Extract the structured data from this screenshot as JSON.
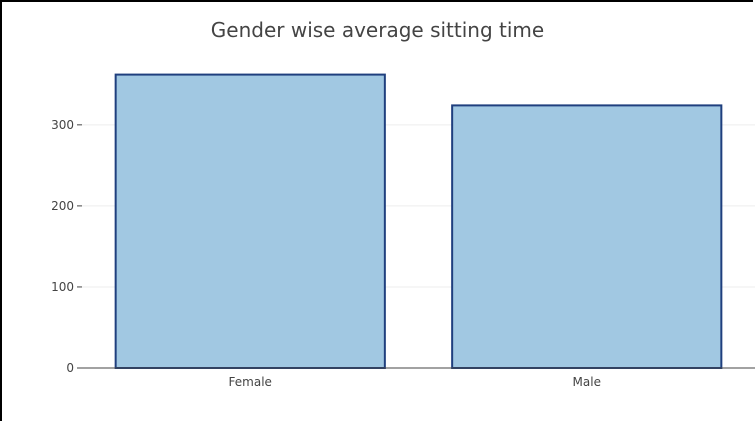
{
  "chart_data": {
    "type": "bar",
    "title": "Gender wise average sitting time",
    "categories": [
      "Female",
      "Male"
    ],
    "values": [
      362,
      324
    ],
    "xlabel": "",
    "ylabel": "",
    "ylim": [
      0,
      380
    ],
    "y_ticks": [
      0,
      100,
      200,
      300
    ],
    "y_tick_labels": [
      "0",
      "100",
      "200",
      "300"
    ],
    "grid": true,
    "legend": "none",
    "colors": {
      "bar_fill": "#a1c8e2",
      "bar_stroke": "#1f3f7e",
      "grid": "#eeeeee",
      "text": "#444444"
    }
  }
}
